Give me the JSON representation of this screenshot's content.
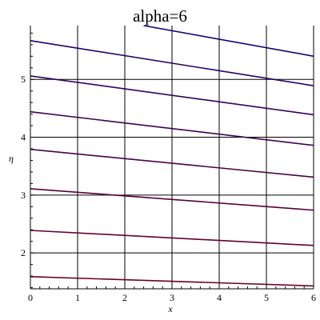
{
  "chart_data": {
    "type": "line",
    "title": "alpha=6",
    "xlabel": "x",
    "ylabel": "η",
    "xlim": [
      0,
      6
    ],
    "ylim": [
      1.38,
      5.93
    ],
    "grid": true,
    "x_ticks": [
      0,
      1,
      2,
      3,
      4,
      5,
      6
    ],
    "x_tick_labels": [
      "0",
      "1",
      "2",
      "3",
      "4",
      "5",
      "6"
    ],
    "y_ticks": [
      2,
      3,
      4,
      5
    ],
    "y_tick_labels": [
      "2",
      "3",
      "4",
      "5"
    ],
    "series": [
      {
        "color": "#6b0026",
        "x": [
          0,
          6
        ],
        "y": [
          1.59,
          1.43
        ]
      },
      {
        "color": "#620031",
        "x": [
          0,
          6
        ],
        "y": [
          2.39,
          2.13
        ]
      },
      {
        "color": "#56003c",
        "x": [
          0,
          6
        ],
        "y": [
          3.11,
          2.74
        ]
      },
      {
        "color": "#4a0047",
        "x": [
          0,
          6
        ],
        "y": [
          3.79,
          3.31
        ]
      },
      {
        "color": "#3e0052",
        "x": [
          0,
          6
        ],
        "y": [
          4.44,
          3.86
        ]
      },
      {
        "color": "#32005d",
        "x": [
          0,
          6
        ],
        "y": [
          5.06,
          4.39
        ]
      },
      {
        "color": "#260068",
        "x": [
          0,
          6
        ],
        "y": [
          5.67,
          4.89
        ]
      },
      {
        "color": "#1a0073",
        "x": [
          2.4,
          6
        ],
        "y": [
          5.93,
          5.4
        ]
      }
    ]
  }
}
